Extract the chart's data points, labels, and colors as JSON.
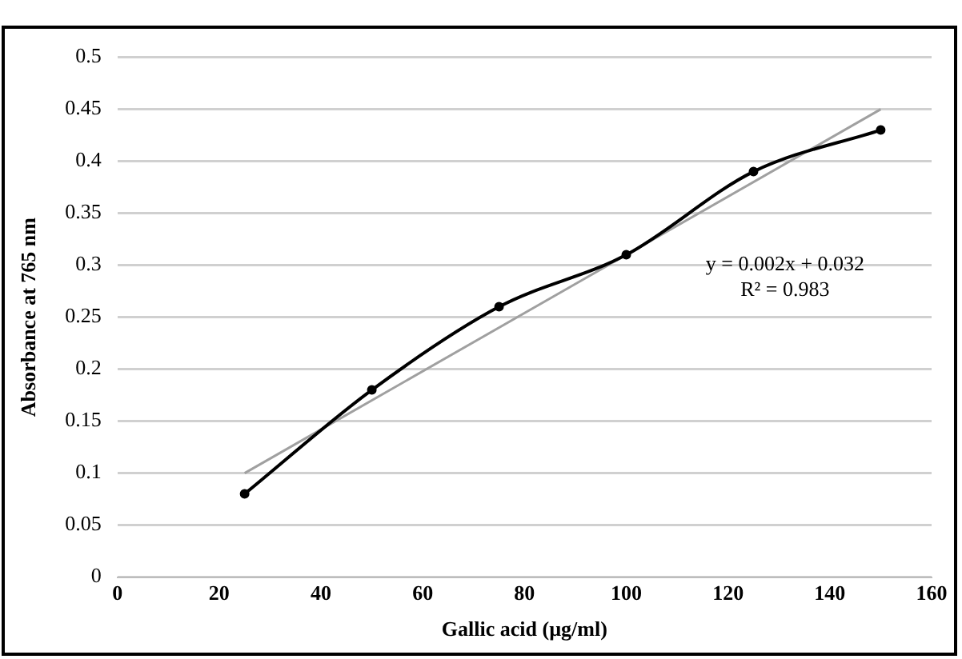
{
  "chart_data": {
    "type": "line",
    "xlabel": "Gallic acid (µg/ml)",
    "ylabel": "Absorbance at 765 nm",
    "xlim": [
      0,
      160
    ],
    "xticks": [
      0,
      20,
      40,
      60,
      80,
      100,
      120,
      140,
      160
    ],
    "ylim": [
      0,
      0.5
    ],
    "yticks": [
      0,
      0.05,
      0.1,
      0.15,
      0.2,
      0.25,
      0.3,
      0.35,
      0.4,
      0.45,
      0.5
    ],
    "grid": "y",
    "legend": false,
    "marker": "circle",
    "series": [
      {
        "color": "#000000",
        "x": [
          25,
          50,
          75,
          100,
          125,
          150
        ],
        "values": [
          0.08,
          0.18,
          0.26,
          0.31,
          0.39,
          0.43
        ]
      },
      {
        "color": "#a0a0a0",
        "x": [
          25,
          150
        ],
        "values": [
          0.1,
          0.45
        ],
        "marker": "none"
      }
    ],
    "annotations": [
      "y = 0.002x + 0.032",
      "R² = 0.983"
    ]
  }
}
